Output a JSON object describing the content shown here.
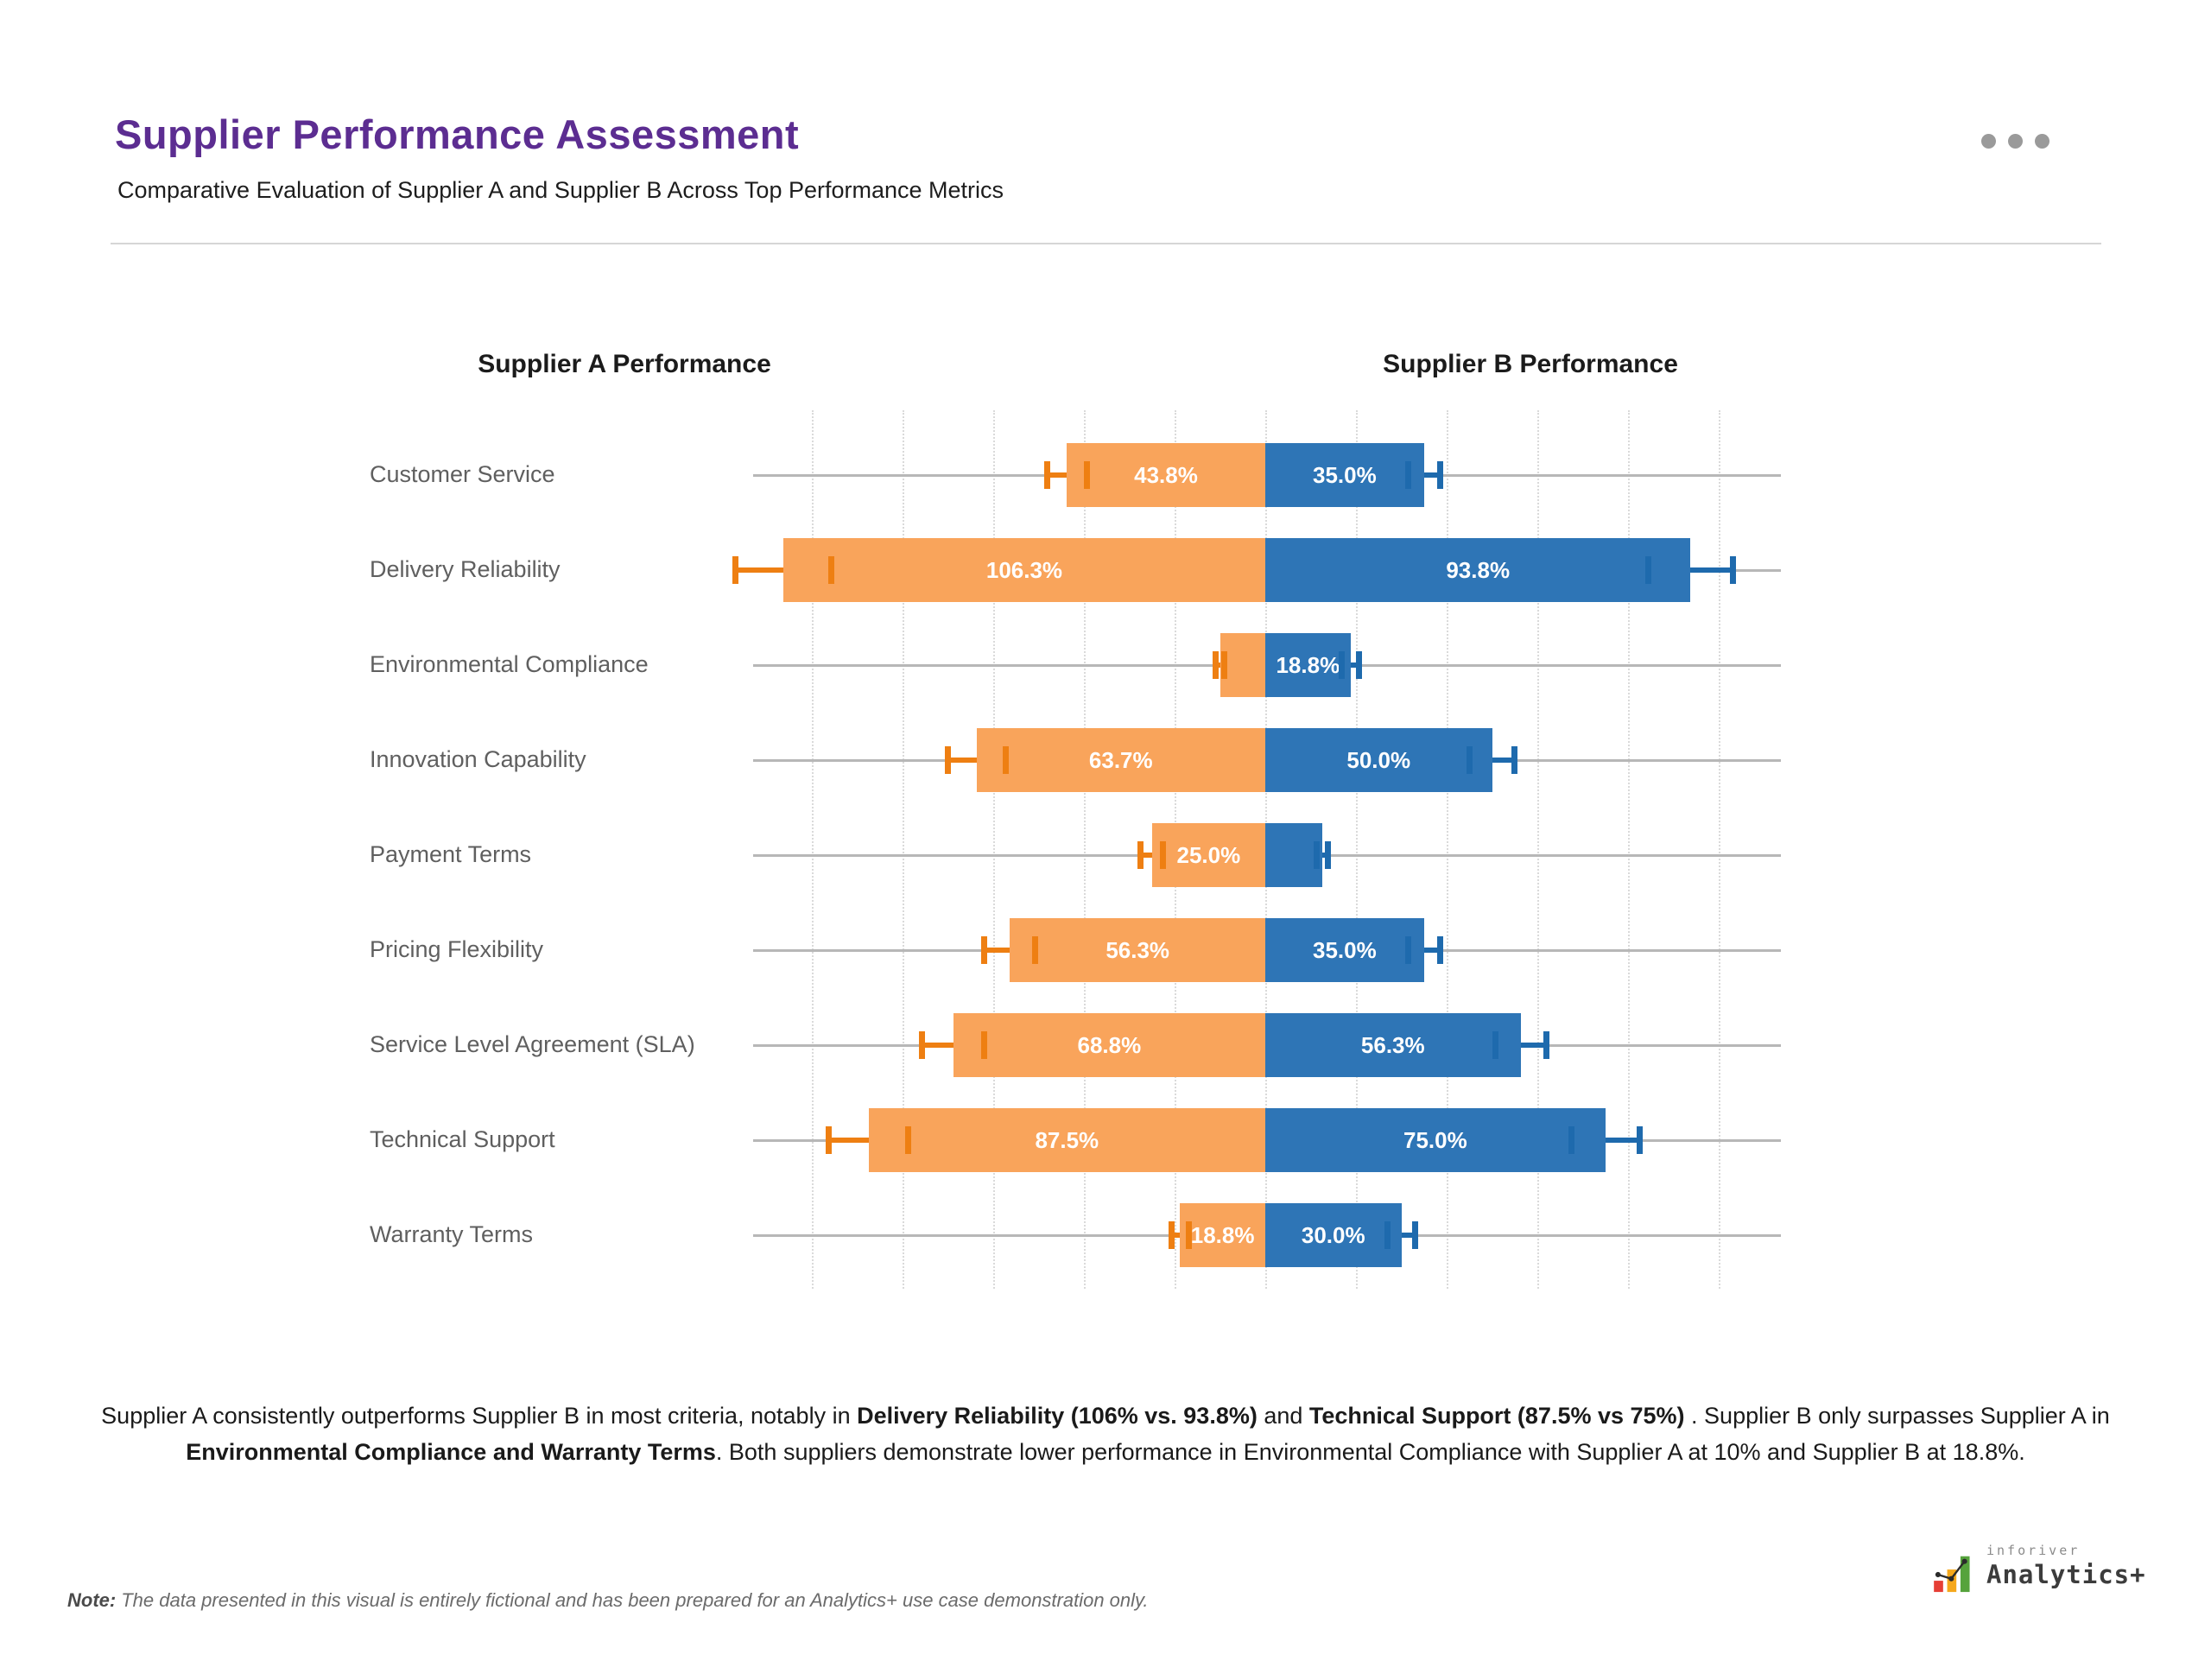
{
  "header": {
    "title": "Supplier Performance Assessment",
    "subtitle": "Comparative Evaluation of Supplier A and Supplier B Across Top Performance Metrics",
    "menu_icon": "ellipsis-icon"
  },
  "colors": {
    "title_purple": "#5C2D91",
    "supplier_a_bar": "#F9A45B",
    "supplier_a_error": "#EE7F12",
    "supplier_b_bar": "#2E75B6",
    "supplier_b_error": "#1E6AAD",
    "baseline_gray": "#b7b7b7"
  },
  "chart_data": {
    "type": "bar",
    "subtype": "diverging-butterfly",
    "left_header": "Supplier A Performance",
    "right_header": "Supplier B Performance",
    "categories": [
      "Customer Service",
      "Delivery Reliability",
      "Environmental Compliance",
      "Innovation Capability",
      "Payment Terms",
      "Pricing Flexibility",
      "Service Level Agreement (SLA)",
      "Technical Support",
      "Warranty Terms"
    ],
    "series": [
      {
        "name": "Supplier A",
        "side": "left",
        "color": "#F9A45B",
        "error_color": "#EE7F12",
        "values": [
          43.8,
          106.3,
          10.0,
          63.7,
          25.0,
          56.3,
          68.8,
          87.5,
          18.8
        ],
        "labels": [
          "43.8%",
          "106.3%",
          "",
          "63.7%",
          "25.0%",
          "56.3%",
          "68.8%",
          "87.5%",
          "18.8%"
        ]
      },
      {
        "name": "Supplier B",
        "side": "right",
        "color": "#2E75B6",
        "error_color": "#1E6AAD",
        "values": [
          35.0,
          93.8,
          18.8,
          50.0,
          12.5,
          35.0,
          56.3,
          75.0,
          30.0
        ],
        "labels": [
          "35.0%",
          "93.8%",
          "18.8%",
          "50.0%",
          "",
          "35.0%",
          "56.3%",
          "75.0%",
          "30.0%"
        ]
      }
    ],
    "value_unit": "%",
    "error_bar_pct_of_value": 10,
    "axis": {
      "center": 0,
      "gridline_step_pct": 20,
      "gridline_min": -100,
      "gridline_max": 100,
      "range_min": -115,
      "range_max": 115,
      "grid_style": "dotted",
      "tick_labels_shown": false
    }
  },
  "summary": {
    "segments": [
      {
        "text": "Supplier A consistently outperforms Supplier B in most criteria, notably in ",
        "bold": false
      },
      {
        "text": "Delivery Reliability (106% vs. 93.8%)",
        "bold": true
      },
      {
        "text": " and ",
        "bold": false
      },
      {
        "text": "Technical Support (87.5% vs 75%)",
        "bold": true
      },
      {
        "text": " . Supplier B only surpasses Supplier A in ",
        "bold": false
      },
      {
        "text": "Environmental Compliance and Warranty Terms",
        "bold": true
      },
      {
        "text": ". Both suppliers demonstrate lower performance in Environmental Compliance with Supplier A at 10% and Supplier B at 18.8%.",
        "bold": false
      }
    ]
  },
  "note": {
    "label": "Note:",
    "text": "The data presented in this visual is entirely fictional and has been prepared for an Analytics+ use case demonstration only."
  },
  "logo": {
    "brand": "inforiver",
    "product": "Analytics+"
  }
}
